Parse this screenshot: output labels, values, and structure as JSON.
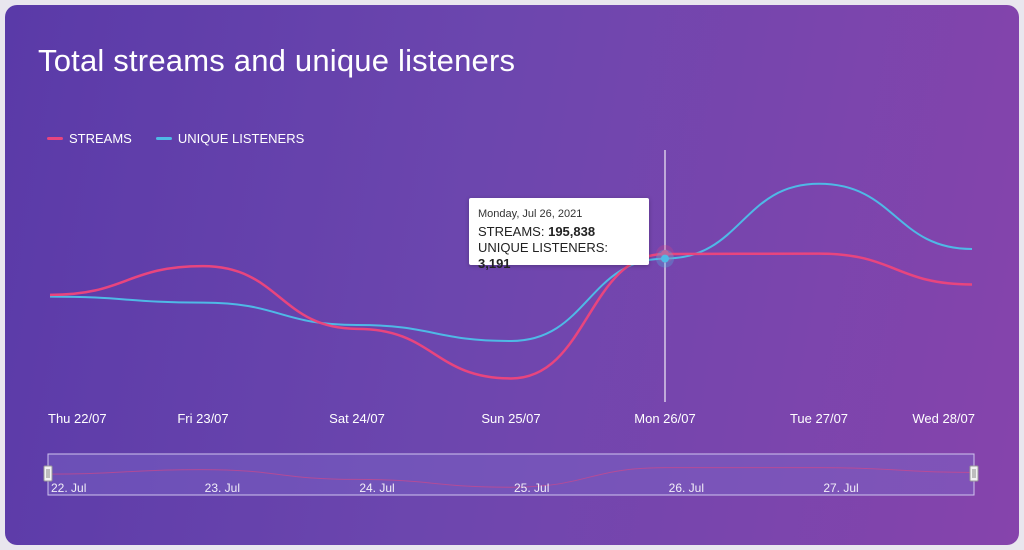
{
  "chart_data": {
    "type": "line",
    "title": "Total streams and unique listeners",
    "categories": [
      "Thu 22/07",
      "Fri 23/07",
      "Sat 24/07",
      "Sun 25/07",
      "Mon 26/07",
      "Tue 27/07",
      "Wed 28/07"
    ],
    "series": [
      {
        "name": "STREAMS",
        "color": "#e8457e",
        "values": [
          188000,
          193500,
          181500,
          172000,
          195838,
          195900,
          190000
        ]
      },
      {
        "name": "UNIQUE LISTENERS",
        "color": "#4fb9e6",
        "values": [
          3096,
          3081,
          3025,
          2985,
          3191,
          3378,
          3215
        ]
      }
    ],
    "navigator_labels": [
      "22. Jul",
      "23. Jul",
      "24. Jul",
      "25. Jul",
      "26. Jul",
      "27. Jul"
    ],
    "tooltip": {
      "date": "Monday, Jul 26, 2021",
      "streams_label": "STREAMS:",
      "streams_value": "195,838",
      "listeners_label": "UNIQUE LISTENERS:",
      "listeners_value": "3,191"
    },
    "crosshair_category": "Mon 26/07",
    "legend_position": "top-left"
  }
}
